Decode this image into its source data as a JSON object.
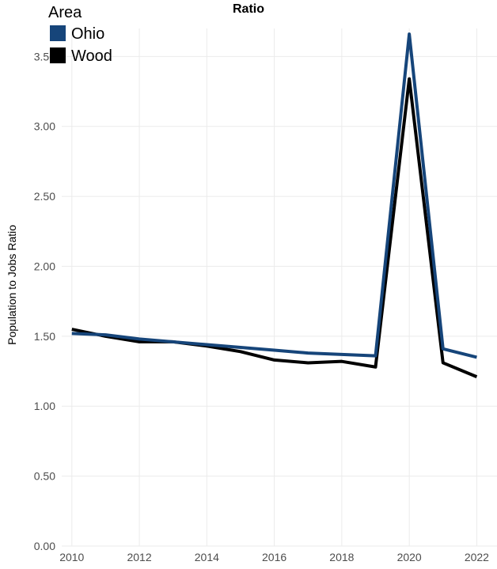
{
  "chart_data": {
    "type": "line",
    "title": "Ratio",
    "xlabel": "",
    "ylabel": "Population to Jobs Ratio",
    "legend": {
      "title": "Area",
      "position": "top-left"
    },
    "x_ticks": [
      "2010",
      "2012",
      "2014",
      "2016",
      "2018",
      "2020",
      "2022"
    ],
    "y_ticks": [
      "0.00",
      "0.50",
      "1.00",
      "1.50",
      "2.00",
      "2.50",
      "3.00",
      "3.50"
    ],
    "xlim": [
      2009.7,
      2022.6
    ],
    "ylim": [
      0,
      3.7
    ],
    "grid": true,
    "x": [
      2010,
      2011,
      2012,
      2013,
      2014,
      2015,
      2016,
      2017,
      2018,
      2019,
      2020,
      2021,
      2022
    ],
    "series": [
      {
        "name": "Ohio",
        "color": "#16457a",
        "values": [
          1.52,
          1.51,
          1.48,
          1.46,
          1.44,
          1.42,
          1.4,
          1.38,
          1.37,
          1.36,
          3.66,
          1.41,
          1.35
        ]
      },
      {
        "name": "Wood",
        "color": "#000000",
        "values": [
          1.55,
          1.5,
          1.46,
          1.46,
          1.43,
          1.39,
          1.33,
          1.31,
          1.32,
          1.28,
          3.34,
          1.31,
          1.21
        ]
      }
    ]
  }
}
